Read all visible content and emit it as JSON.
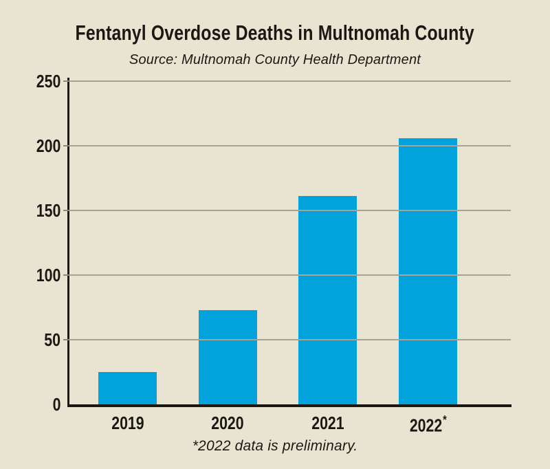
{
  "page": {
    "background_color": "#e9e3d1",
    "text_color": "#1a1813"
  },
  "chart_data": {
    "type": "bar",
    "title": "Fentanyl Overdose Deaths in Multnomah County",
    "subtitle": "Source: Multnomah County Health Department",
    "footnote": "*2022 data is preliminary.",
    "categories": [
      "2019",
      "2020",
      "2021",
      "2022*"
    ],
    "values": [
      25,
      73,
      161,
      206
    ],
    "y_ticks": [
      0,
      50,
      100,
      150,
      200,
      250
    ],
    "ylim": [
      0,
      250
    ],
    "xlabel": "",
    "ylabel": "",
    "grid": true,
    "legend_position": "none",
    "bar_color": "#02a3dc",
    "grid_color": "#aaa394",
    "axis_color": "#1b1812"
  }
}
